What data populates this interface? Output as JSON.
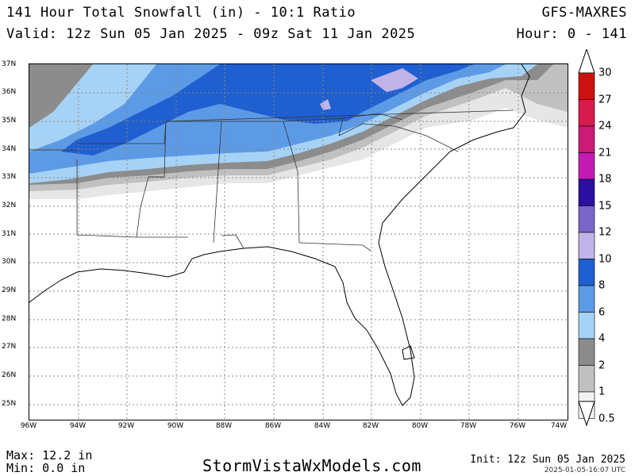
{
  "header": {
    "title": "141 Hour Total Snowfall (in) - 10:1 Ratio",
    "valid": "Valid: 12z Sun 05 Jan 2025 - 09z Sat 11 Jan 2025",
    "model": "GFS-MAXRES",
    "hour_range": "Hour: 0 - 141"
  },
  "map": {
    "lat_labels": [
      "37N",
      "36N",
      "35N",
      "34N",
      "33N",
      "32N",
      "31N",
      "30N",
      "29N",
      "28N",
      "27N",
      "26N",
      "25N"
    ],
    "lon_labels": [
      "96W",
      "94W",
      "92W",
      "90W",
      "88W",
      "86W",
      "84W",
      "82W",
      "80W",
      "78W",
      "76W",
      "74W"
    ]
  },
  "legend": {
    "labels": [
      "30",
      "27",
      "24",
      "21",
      "18",
      "15",
      "12",
      "10",
      "8",
      "6",
      "4",
      "2",
      "1",
      "0.5"
    ],
    "colors": [
      "#cc1111",
      "#d81b4d",
      "#cc1a77",
      "#c41ab4",
      "#2a0fa0",
      "#7a66c8",
      "#c0b3e8",
      "#1f5fd0",
      "#5c9ae6",
      "#a6d2f5",
      "#8c8c8c",
      "#c0c0c0",
      "#f2f2f2"
    ]
  },
  "footer": {
    "max": "Max: 12.2 in",
    "min": "Min: 0.0 in",
    "site": "StormVistaWxModels.com",
    "init": "Init: 12z Sun 05 Jan 2025",
    "stamp": "2025-01-05-16:07 UTC"
  }
}
